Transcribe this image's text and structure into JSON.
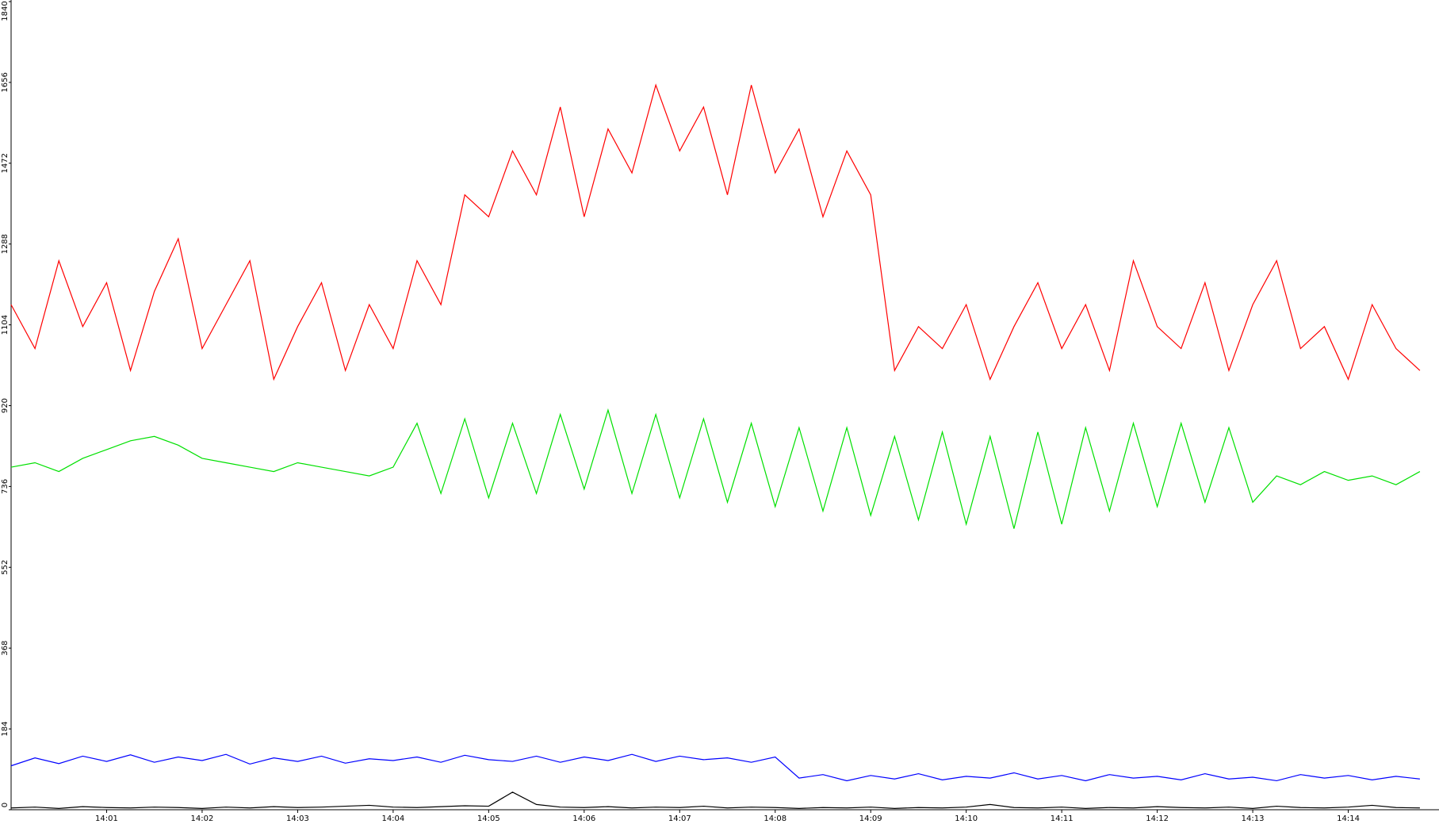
{
  "chart_data": {
    "type": "line",
    "x": [
      0,
      0.25,
      0.5,
      0.75,
      1,
      1.25,
      1.5,
      1.75,
      2,
      2.25,
      2.5,
      2.75,
      3,
      3.25,
      3.5,
      3.75,
      4,
      4.25,
      4.5,
      4.75,
      5,
      5.25,
      5.5,
      5.75,
      6,
      6.25,
      6.5,
      6.75,
      7,
      7.25,
      7.5,
      7.75,
      8,
      8.25,
      8.5,
      8.75,
      9,
      9.25,
      9.5,
      9.75,
      10,
      10.25,
      10.5,
      10.75,
      11,
      11.25,
      11.5,
      11.75,
      12,
      12.25,
      12.5,
      12.75,
      13,
      13.25,
      13.5,
      13.75,
      14,
      14.25,
      14.5,
      14.75
    ],
    "xlim": [
      0,
      14.95
    ],
    "xticks": [
      {
        "value": 1,
        "label": "14:01"
      },
      {
        "value": 2,
        "label": "14:02"
      },
      {
        "value": 3,
        "label": "14:03"
      },
      {
        "value": 4,
        "label": "14:04"
      },
      {
        "value": 5,
        "label": "14:05"
      },
      {
        "value": 6,
        "label": "14:06"
      },
      {
        "value": 7,
        "label": "14:07"
      },
      {
        "value": 8,
        "label": "14:08"
      },
      {
        "value": 9,
        "label": "14:09"
      },
      {
        "value": 10,
        "label": "14:10"
      },
      {
        "value": 11,
        "label": "14:11"
      },
      {
        "value": 12,
        "label": "14:12"
      },
      {
        "value": 13,
        "label": "14:13"
      },
      {
        "value": 14,
        "label": "14:14"
      }
    ],
    "ylim": [
      0,
      1840
    ],
    "yticks": [
      0,
      184,
      368,
      552,
      736,
      920,
      1104,
      1288,
      1472,
      1656,
      1840
    ],
    "series": [
      {
        "color": "#ff0000",
        "values": [
          1150,
          1050,
          1250,
          1100,
          1200,
          1000,
          1180,
          1300,
          1050,
          1150,
          1250,
          980,
          1100,
          1200,
          1000,
          1150,
          1050,
          1250,
          1150,
          1400,
          1350,
          1500,
          1400,
          1600,
          1350,
          1550,
          1450,
          1650,
          1500,
          1600,
          1400,
          1650,
          1450,
          1550,
          1350,
          1500,
          1400,
          1000,
          1100,
          1050,
          1150,
          980,
          1100,
          1200,
          1050,
          1150,
          1000,
          1250,
          1100,
          1050,
          1200,
          1000,
          1150,
          1250,
          1050,
          1100,
          980,
          1150,
          1050,
          1000
        ]
      },
      {
        "color": "#00e000",
        "values": [
          780,
          790,
          770,
          800,
          820,
          840,
          850,
          830,
          800,
          790,
          780,
          770,
          790,
          780,
          770,
          760,
          780,
          880,
          720,
          890,
          710,
          880,
          720,
          900,
          730,
          910,
          720,
          900,
          710,
          890,
          700,
          880,
          690,
          870,
          680,
          870,
          670,
          850,
          660,
          860,
          650,
          850,
          640,
          860,
          650,
          870,
          680,
          880,
          690,
          880,
          700,
          870,
          700,
          760,
          740,
          770,
          750,
          760,
          740,
          770
        ]
      },
      {
        "color": "#0000ff",
        "values": [
          100,
          118,
          105,
          122,
          110,
          125,
          108,
          120,
          112,
          126,
          104,
          118,
          110,
          122,
          106,
          116,
          112,
          120,
          108,
          124,
          114,
          110,
          122,
          108,
          120,
          112,
          126,
          110,
          122,
          114,
          118,
          108,
          120,
          72,
          80,
          66,
          78,
          70,
          82,
          68,
          76,
          72,
          84,
          70,
          78,
          66,
          80,
          72,
          76,
          68,
          82,
          70,
          74,
          66,
          80,
          72,
          78,
          68,
          76,
          70
        ]
      },
      {
        "color": "#000000",
        "values": [
          4,
          6,
          3,
          7,
          5,
          4,
          6,
          5,
          3,
          6,
          4,
          7,
          5,
          6,
          8,
          10,
          6,
          5,
          7,
          9,
          8,
          40,
          12,
          6,
          5,
          7,
          4,
          6,
          5,
          8,
          4,
          6,
          5,
          3,
          5,
          4,
          6,
          3,
          5,
          4,
          6,
          12,
          5,
          4,
          6,
          3,
          5,
          4,
          7,
          5,
          4,
          6,
          3,
          8,
          5,
          4,
          6,
          10,
          5,
          4
        ]
      }
    ]
  }
}
